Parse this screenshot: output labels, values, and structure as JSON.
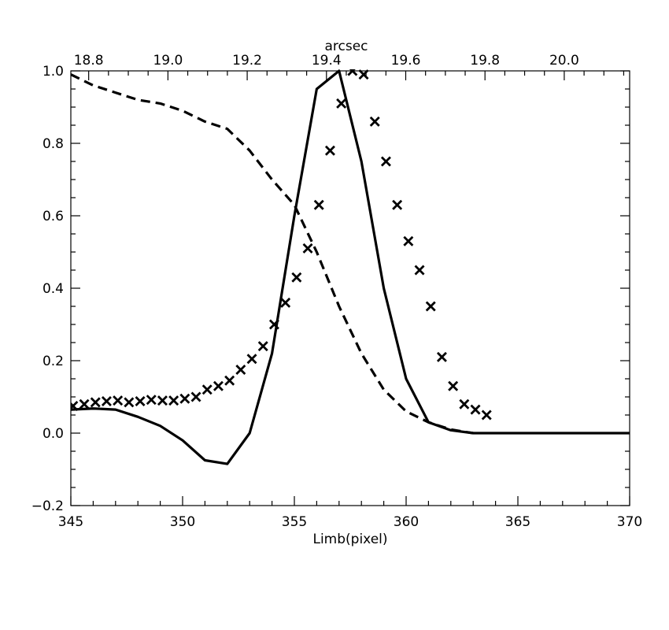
{
  "chart_data": {
    "type": "line",
    "title": "",
    "xlabel": "Limb(pixel)",
    "ylabel": "",
    "x2label": "arcsec",
    "xlim": [
      345,
      370
    ],
    "ylim": [
      -0.2,
      1.0
    ],
    "x2lim": [
      18.755,
      20.165
    ],
    "x_ticks": [
      345,
      350,
      355,
      360,
      365,
      370
    ],
    "x_tick_labels": [
      "345",
      "350",
      "355",
      "360",
      "365",
      "370"
    ],
    "y_ticks": [
      -0.2,
      0.0,
      0.2,
      0.4,
      0.6,
      0.8,
      1.0
    ],
    "y_tick_labels": [
      "−0.2",
      "0.0",
      "0.2",
      "0.4",
      "0.6",
      "0.8",
      "1.0"
    ],
    "x2_ticks": [
      18.8,
      19.0,
      19.2,
      19.4,
      19.6,
      19.8,
      20.0
    ],
    "x2_tick_labels": [
      "18.8",
      "19.0",
      "19.2",
      "19.4",
      "19.6",
      "19.8",
      "20.0"
    ],
    "grid": false,
    "legend": "none",
    "series": [
      {
        "style": "solid",
        "color": "#000000",
        "x": [
          345,
          346,
          347,
          348,
          349,
          350,
          351,
          352,
          353,
          354,
          355,
          356,
          357,
          358,
          359,
          360,
          361,
          362,
          363,
          364,
          365,
          366,
          367,
          368,
          369,
          370
        ],
        "y": [
          0.065,
          0.068,
          0.065,
          0.045,
          0.02,
          -0.02,
          -0.075,
          -0.085,
          0.0,
          0.22,
          0.6,
          0.95,
          1.0,
          0.75,
          0.4,
          0.15,
          0.03,
          0.008,
          0.0,
          0.0,
          0.0,
          0.0,
          0.0,
          0.0,
          0.0,
          0.0
        ]
      },
      {
        "style": "dashed",
        "color": "#000000",
        "x": [
          345,
          346,
          347,
          348,
          349,
          350,
          351,
          352,
          353,
          354,
          355,
          356,
          357,
          358,
          359,
          360,
          361,
          362,
          363
        ],
        "y": [
          0.99,
          0.96,
          0.94,
          0.92,
          0.91,
          0.89,
          0.86,
          0.84,
          0.78,
          0.7,
          0.63,
          0.5,
          0.35,
          0.22,
          0.12,
          0.06,
          0.03,
          0.01,
          0.0
        ]
      },
      {
        "style": "markers",
        "marker": "x",
        "color": "#000000",
        "x": [
          345.1,
          345.6,
          346.1,
          346.6,
          347.1,
          347.6,
          348.1,
          348.6,
          349.1,
          349.6,
          350.1,
          350.6,
          351.1,
          351.6,
          352.1,
          352.6,
          353.1,
          353.6,
          354.1,
          354.6,
          355.1,
          355.6,
          356.1,
          356.6,
          357.1,
          357.6,
          358.1,
          358.6,
          359.1,
          359.6,
          360.1,
          360.6,
          361.1,
          361.6,
          362.1,
          362.6,
          363.1,
          363.6
        ],
        "y": [
          0.075,
          0.08,
          0.085,
          0.088,
          0.09,
          0.085,
          0.088,
          0.092,
          0.09,
          0.09,
          0.095,
          0.1,
          0.12,
          0.13,
          0.145,
          0.175,
          0.205,
          0.24,
          0.3,
          0.36,
          0.43,
          0.51,
          0.63,
          0.78,
          0.91,
          1.0,
          0.99,
          0.86,
          0.75,
          0.63,
          0.53,
          0.45,
          0.35,
          0.21,
          0.13,
          0.08,
          0.065,
          0.05
        ]
      }
    ]
  }
}
